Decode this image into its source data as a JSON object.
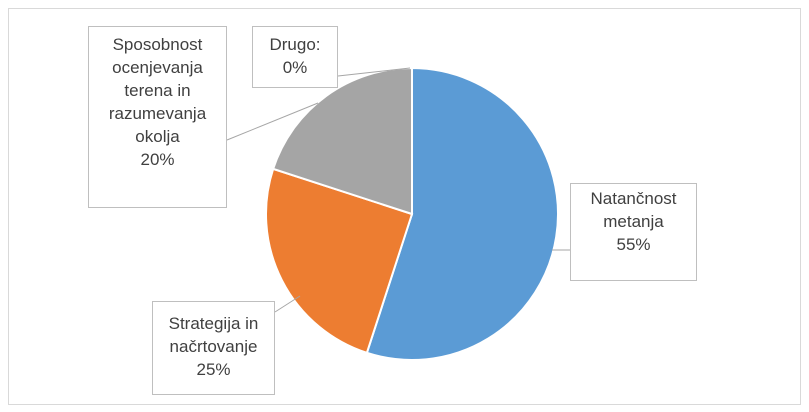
{
  "chart_data": {
    "type": "pie",
    "categories": [
      "Natančnost metanja",
      "Strategija in načrtovanje",
      "Sposobnost ocenjevanja terena in razumevanja okolja",
      "Drugo:"
    ],
    "values": [
      55,
      25,
      20,
      0
    ],
    "value_labels": [
      "55%",
      "25%",
      "20%",
      "0%"
    ],
    "colors": [
      "#5b9bd5",
      "#ed7d31",
      "#a5a5a5",
      "#ffc000"
    ]
  }
}
